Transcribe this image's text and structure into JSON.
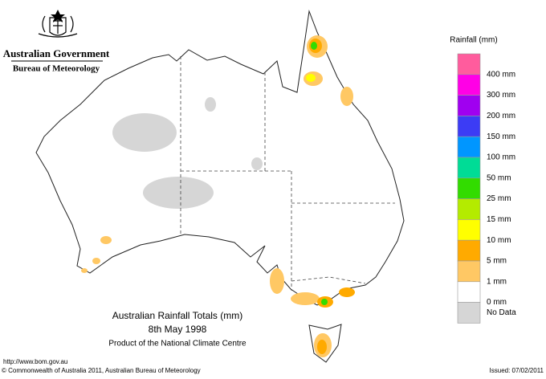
{
  "header": {
    "government": "Australian Government",
    "agency": "Bureau of Meteorology"
  },
  "map_title": {
    "title": "Australian Rainfall Totals (mm)",
    "date": "8th May 1998",
    "product": "Product of the National Climate Centre"
  },
  "legend": {
    "title": "Rainfall (mm)",
    "colors": [
      "#ff5c9d",
      "#ff00e6",
      "#a000f0",
      "#3c3cf5",
      "#0096ff",
      "#00dc96",
      "#32dc00",
      "#b4eb00",
      "#ffff00",
      "#ffaa00",
      "#ffc864",
      "#ffffff",
      "#d6d6d6"
    ],
    "labels": [
      "400 mm",
      "300 mm",
      "200 mm",
      "150 mm",
      "100 mm",
      "50 mm",
      "25 mm",
      "15 mm",
      "10 mm",
      "5 mm",
      "1 mm",
      "0 mm"
    ],
    "no_data": "No Data"
  },
  "footer": {
    "url": "http://www.bom.gov.au",
    "copyright": "© Commonwealth of Australia 2011, Australian Bureau of Meteorology",
    "issued": "Issued: 07/02/2011"
  }
}
